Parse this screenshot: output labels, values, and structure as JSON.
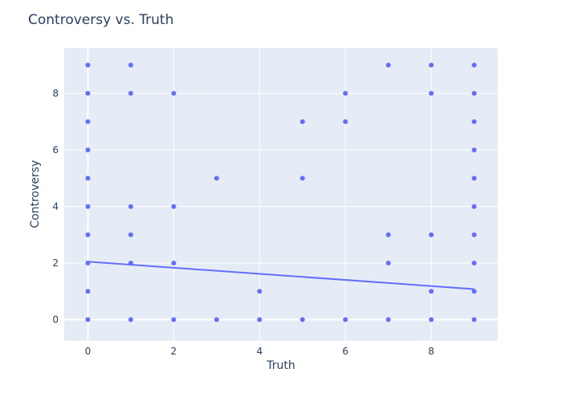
{
  "chart_data": {
    "type": "scatter",
    "title": "Controversy vs. Truth",
    "xlabel": "Truth",
    "ylabel": "Controversy",
    "xlim": [
      -0.55,
      9.55
    ],
    "ylim": [
      -0.75,
      9.6
    ],
    "x_ticks": [
      "0",
      "2",
      "4",
      "6",
      "8"
    ],
    "y_ticks": [
      "0",
      "2",
      "4",
      "6",
      "8"
    ],
    "grid": true,
    "colors": {
      "plot_bg": "#e5ecf6",
      "grid": "#ffffff",
      "marker": "#636efa",
      "trendline": "#636efa",
      "text": "#2a3f5f"
    },
    "points": [
      {
        "x": 0,
        "y": 9
      },
      {
        "x": 0,
        "y": 8
      },
      {
        "x": 0,
        "y": 7
      },
      {
        "x": 0,
        "y": 6
      },
      {
        "x": 0,
        "y": 5
      },
      {
        "x": 0,
        "y": 4
      },
      {
        "x": 0,
        "y": 3
      },
      {
        "x": 0,
        "y": 2
      },
      {
        "x": 0,
        "y": 1
      },
      {
        "x": 0,
        "y": 0
      },
      {
        "x": 1,
        "y": 9
      },
      {
        "x": 1,
        "y": 8
      },
      {
        "x": 1,
        "y": 4
      },
      {
        "x": 1,
        "y": 3
      },
      {
        "x": 1,
        "y": 2
      },
      {
        "x": 1,
        "y": 0
      },
      {
        "x": 2,
        "y": 8
      },
      {
        "x": 2,
        "y": 4
      },
      {
        "x": 2,
        "y": 2
      },
      {
        "x": 2,
        "y": 0
      },
      {
        "x": 3,
        "y": 5
      },
      {
        "x": 3,
        "y": 0
      },
      {
        "x": 4,
        "y": 1
      },
      {
        "x": 4,
        "y": 0
      },
      {
        "x": 5,
        "y": 7
      },
      {
        "x": 5,
        "y": 5
      },
      {
        "x": 5,
        "y": 0
      },
      {
        "x": 6,
        "y": 8
      },
      {
        "x": 6,
        "y": 7
      },
      {
        "x": 6,
        "y": 0
      },
      {
        "x": 7,
        "y": 9
      },
      {
        "x": 7,
        "y": 3
      },
      {
        "x": 7,
        "y": 2
      },
      {
        "x": 7,
        "y": 0
      },
      {
        "x": 8,
        "y": 9
      },
      {
        "x": 8,
        "y": 8
      },
      {
        "x": 8,
        "y": 3
      },
      {
        "x": 8,
        "y": 1
      },
      {
        "x": 8,
        "y": 0
      },
      {
        "x": 9,
        "y": 9
      },
      {
        "x": 9,
        "y": 8
      },
      {
        "x": 9,
        "y": 7
      },
      {
        "x": 9,
        "y": 6
      },
      {
        "x": 9,
        "y": 5
      },
      {
        "x": 9,
        "y": 4
      },
      {
        "x": 9,
        "y": 3
      },
      {
        "x": 9,
        "y": 2
      },
      {
        "x": 9,
        "y": 1
      },
      {
        "x": 9,
        "y": 0
      }
    ],
    "trendline": {
      "x": [
        0,
        9
      ],
      "y": [
        2.05,
        1.08
      ]
    }
  }
}
